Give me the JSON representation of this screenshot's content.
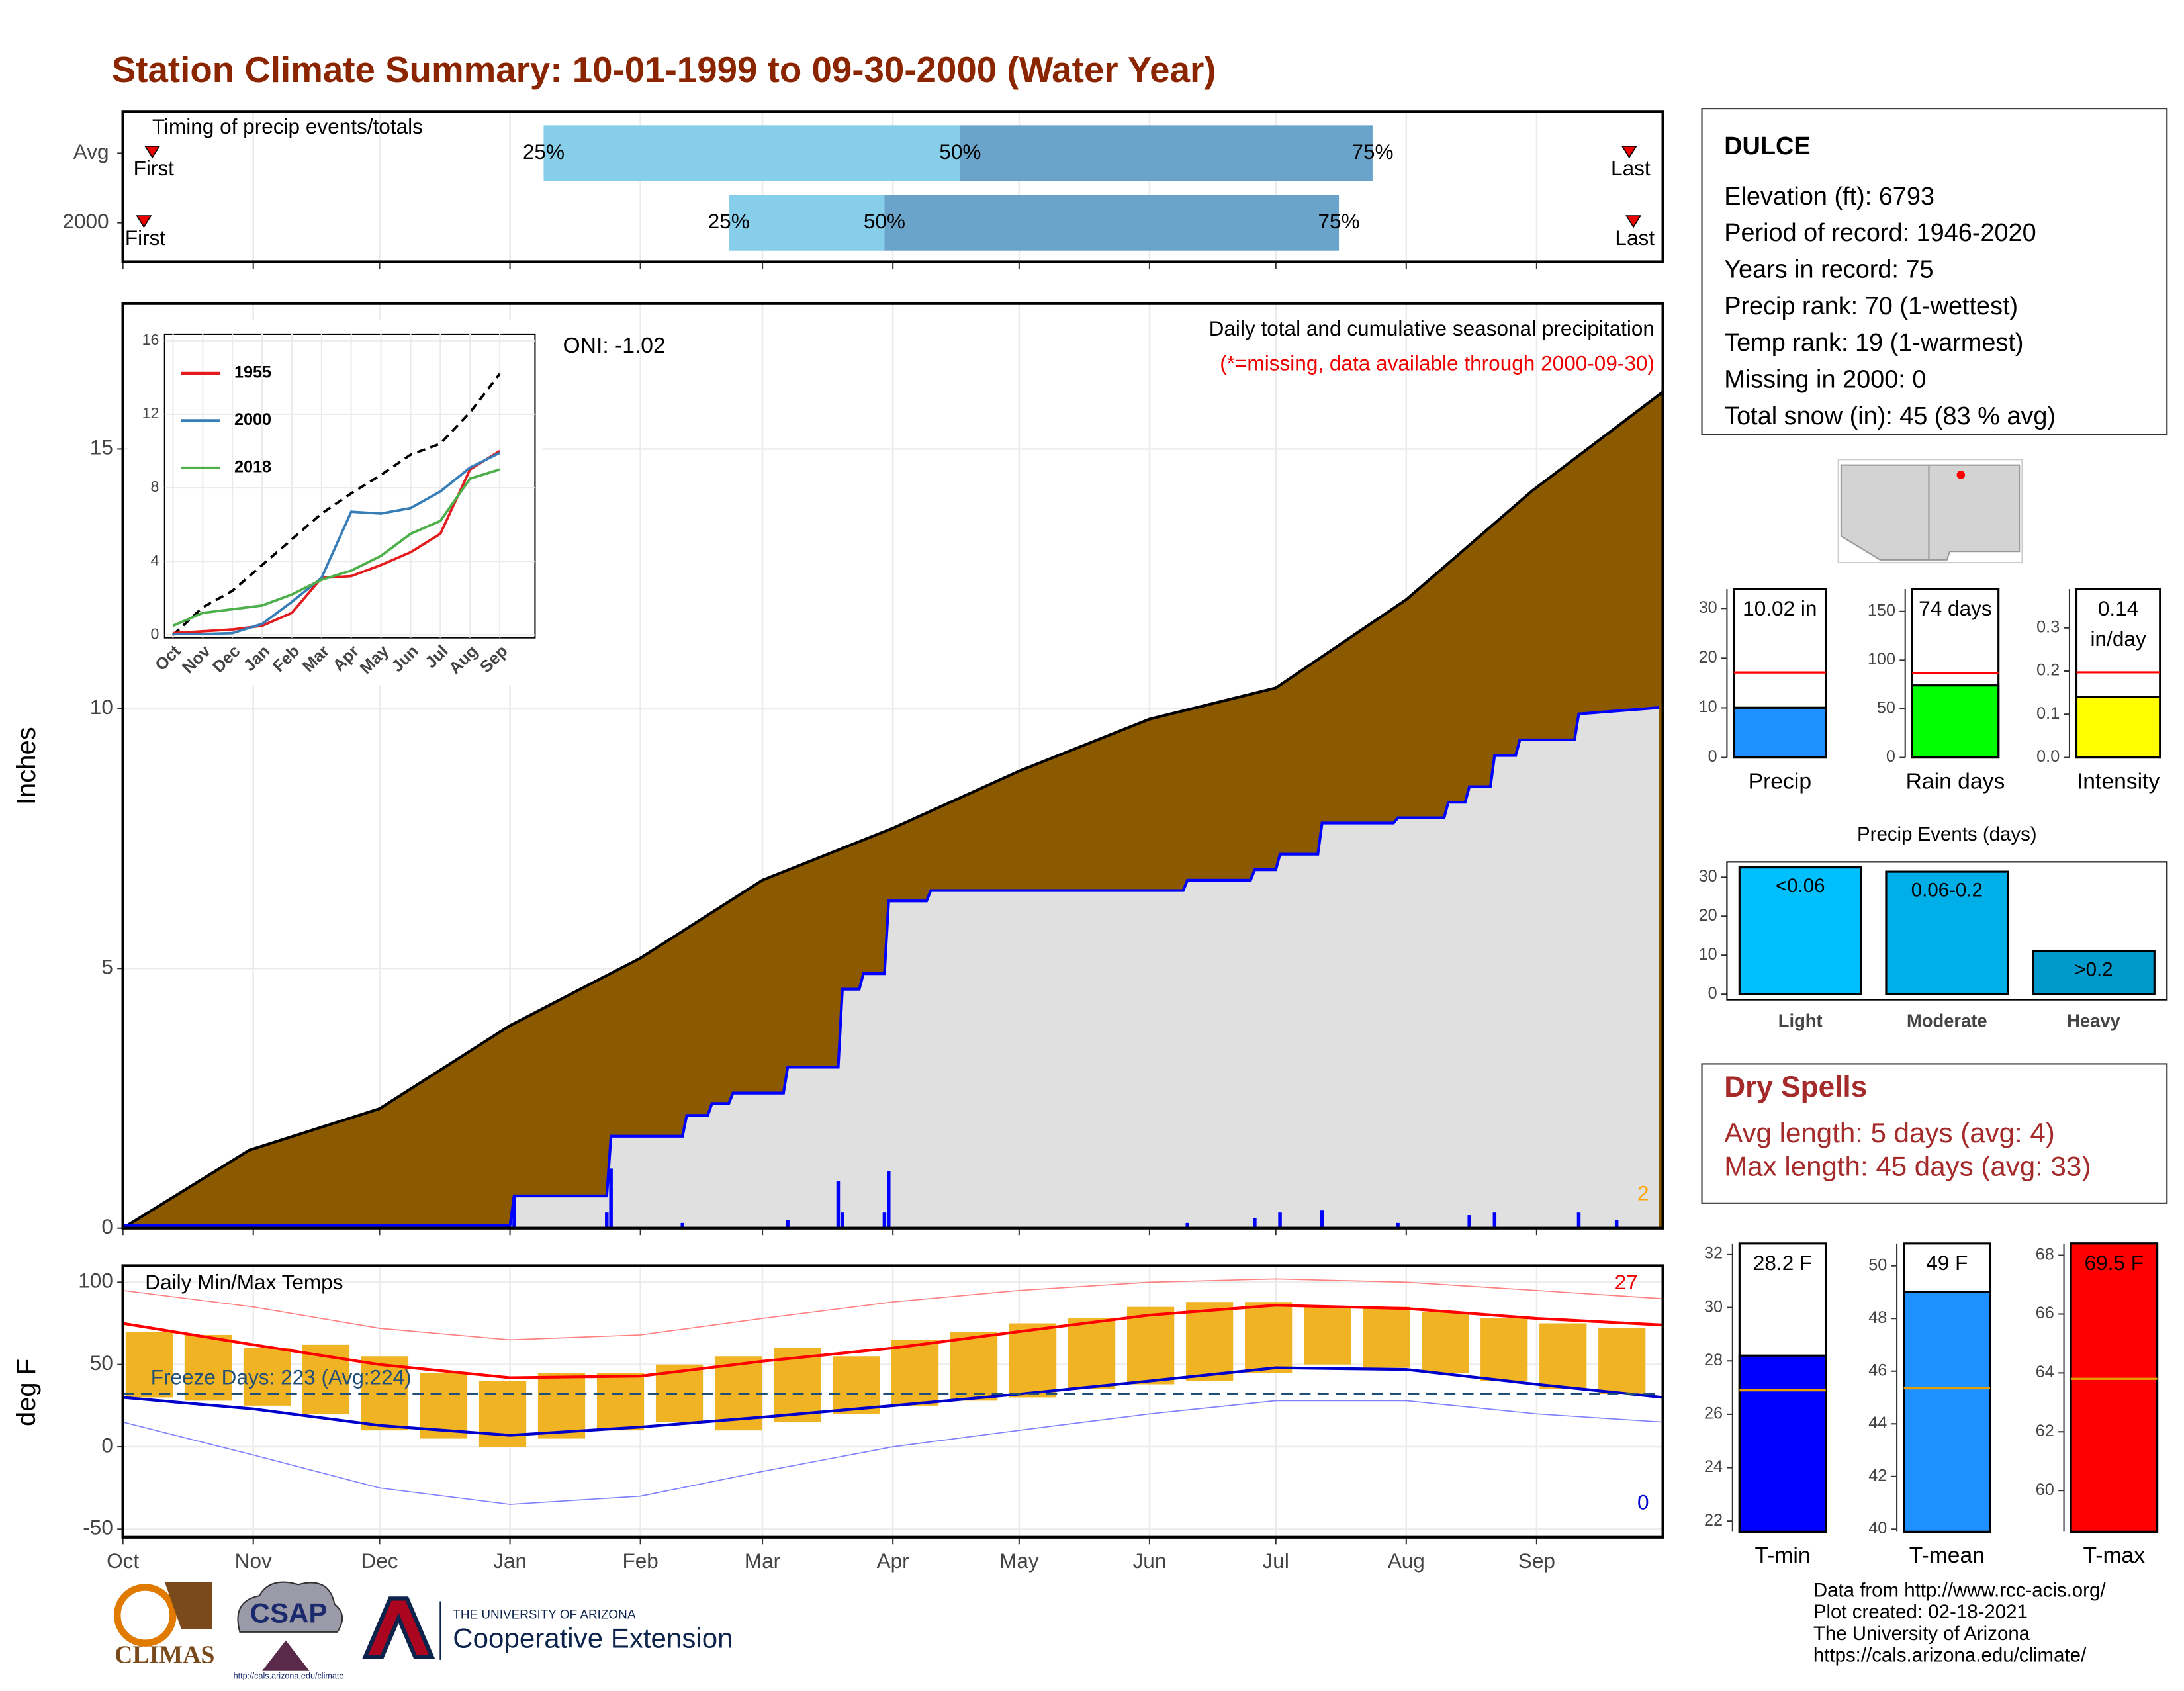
{
  "title": "Station Climate Summary: 10-01-1999 to 09-30-2000 (Water Year)",
  "chart_data": [
    {
      "type": "range",
      "title": "Timing of precip events/totals",
      "categories": [
        "Avg",
        "2000"
      ],
      "first": [
        7,
        5
      ],
      "p25": [
        100,
        144
      ],
      "p50": [
        199,
        181
      ],
      "p75": [
        297,
        289
      ],
      "last": [
        358,
        359
      ],
      "first_label": "First",
      "last_label": "Last",
      "p25_label": "25%",
      "p50_label": "50%",
      "p75_label": "75%",
      "colors": [
        "#87ceeb",
        "#6ba4cb"
      ],
      "xlim": [
        0,
        366
      ]
    },
    {
      "type": "cumulative",
      "title": "Daily total and cumulative seasonal precipitation",
      "subtitle": "(*=missing, data available through 2000-09-30)",
      "annotation": "ONI: -1.02",
      "ylabel": "Inches",
      "ylim": [
        0,
        17.8
      ],
      "yticks": [
        0,
        5,
        10,
        15
      ],
      "xlim": [
        0,
        366
      ],
      "series": [
        {
          "color": "#8b5a00",
          "line_color": "#000000",
          "x": [
            0,
            30,
            61,
            92,
            123,
            152,
            183,
            213,
            244,
            274,
            305,
            335,
            366
          ],
          "values": [
            0,
            1.5,
            2.3,
            3.9,
            5.2,
            6.7,
            7.7,
            8.8,
            9.8,
            10.4,
            12.1,
            14.2,
            16.1
          ]
        },
        {
          "color": "#e0e0e0",
          "line_color": "#0000ff",
          "x": [
            0,
            92,
            93,
            115,
            116,
            133,
            134,
            139,
            140,
            144,
            145,
            157,
            158,
            170,
            171,
            175,
            176,
            181,
            182,
            191,
            192,
            252,
            253,
            268,
            269,
            274,
            275,
            284,
            285,
            302,
            303,
            314,
            315,
            319,
            320,
            325,
            326,
            331,
            332,
            345,
            346,
            365
          ],
          "values": [
            0.05,
            0.05,
            0.62,
            0.62,
            1.77,
            1.77,
            2.17,
            2.17,
            2.4,
            2.4,
            2.6,
            2.6,
            3.1,
            3.1,
            4.6,
            4.6,
            4.9,
            4.9,
            6.3,
            6.3,
            6.5,
            6.5,
            6.7,
            6.7,
            6.9,
            6.9,
            7.2,
            7.2,
            7.8,
            7.8,
            7.9,
            7.9,
            8.2,
            8.2,
            8.5,
            8.5,
            9.1,
            9.1,
            9.4,
            9.4,
            9.9,
            10.02
          ]
        }
      ],
      "daily_color": "#0000ff",
      "daily_x": [
        93,
        115,
        116,
        133,
        158,
        170,
        171,
        181,
        182,
        253,
        269,
        275,
        285,
        303,
        320,
        326,
        346,
        355
      ],
      "daily_values": [
        0.6,
        0.3,
        1.15,
        0.1,
        0.15,
        0.9,
        0.3,
        0.3,
        1.1,
        0.1,
        0.2,
        0.3,
        0.35,
        0.1,
        0.25,
        0.3,
        0.3,
        0.15
      ],
      "count": 2,
      "count_color": "#ffa500"
    },
    {
      "type": "line",
      "categories": [
        "Oct",
        "Nov",
        "Dec",
        "Jan",
        "Feb",
        "Mar",
        "Apr",
        "May",
        "Jun",
        "Jul",
        "Aug",
        "Sep"
      ],
      "ylim": [
        0,
        16.2
      ],
      "yticks": [
        0,
        4,
        8,
        12,
        16
      ],
      "series": [
        {
          "color": "#000000",
          "dash": true,
          "values": [
            0,
            1.5,
            2.4,
            3.8,
            5.2,
            6.6,
            7.7,
            8.7,
            9.8,
            10.4,
            12.1,
            14.2
          ]
        },
        {
          "name": "1955",
          "color": "#e41a1c",
          "values": [
            0.1,
            0.2,
            0.3,
            0.5,
            1.2,
            3.1,
            3.2,
            3.8,
            4.5,
            5.5,
            9.0,
            10.0
          ]
        },
        {
          "name": "2000",
          "color": "#377eb8",
          "values": [
            0.05,
            0.05,
            0.1,
            0.6,
            1.8,
            3.1,
            6.7,
            6.6,
            6.9,
            7.8,
            9.1,
            9.9
          ]
        },
        {
          "name": "2018",
          "color": "#4daf4a",
          "values": [
            0.5,
            1.2,
            1.4,
            1.6,
            2.2,
            3.0,
            3.5,
            4.3,
            5.5,
            6.2,
            8.5,
            9.0
          ]
        }
      ]
    },
    {
      "type": "bar",
      "categories": [
        "Precip"
      ],
      "values": [
        10.02
      ],
      "value_labels": [
        "10.02 in"
      ],
      "average": 17.1,
      "average_color": "#ff0000",
      "color": "#1e90ff",
      "ylim": [
        0,
        33.9
      ],
      "yticks": [
        0,
        10,
        20,
        30
      ]
    },
    {
      "type": "bar",
      "categories": [
        "Rain days"
      ],
      "values": [
        74
      ],
      "value_labels": [
        "74 days"
      ],
      "average": 87,
      "average_color": "#ff0000",
      "color": "#00ff00",
      "ylim": [
        0,
        173
      ],
      "yticks": [
        0,
        50,
        100,
        150
      ]
    },
    {
      "type": "bar",
      "categories": [
        "Intensity"
      ],
      "values": [
        0.14
      ],
      "value_labels": [
        "0.14 in/day"
      ],
      "average": 0.197,
      "average_color": "#ff0000",
      "color": "#ffff00",
      "ylim": [
        0,
        0.39
      ],
      "yticks": [
        {
          "value": 0,
          "label": "0.0"
        },
        0.1,
        0.2,
        0.3
      ]
    },
    {
      "type": "bar",
      "title": "Precip Events (days)",
      "categories": [
        "Light",
        "Moderate",
        "Heavy"
      ],
      "values": [
        32.5,
        31.4,
        11
      ],
      "bin_labels": [
        "<0.06",
        "0.06-0.2",
        ">0.2"
      ],
      "colors": [
        "#00bfff",
        "#00aee8",
        "#0099cc"
      ],
      "ylim": [
        0,
        33.9
      ],
      "yticks": [
        0,
        10,
        20,
        30
      ],
      "frame": true
    },
    {
      "type": "temperature",
      "title": "Daily Min/Max Temps",
      "ylabel": "deg F",
      "ylim": [
        -55,
        110
      ],
      "yticks": [
        -50,
        0,
        50,
        100
      ],
      "xlim": [
        0,
        366
      ],
      "xticks": [
        {
          "value": 0,
          "label": "Oct"
        },
        {
          "value": 31,
          "label": "Nov"
        },
        {
          "value": 61,
          "label": "Dec"
        },
        {
          "value": 92,
          "label": "Jan"
        },
        {
          "value": 123,
          "label": "Feb"
        },
        {
          "value": 152,
          "label": "Mar"
        },
        {
          "value": 183,
          "label": "Apr"
        },
        {
          "value": 213,
          "label": "May"
        },
        {
          "value": 244,
          "label": "Jun"
        },
        {
          "value": 274,
          "label": "Jul"
        },
        {
          "value": 305,
          "label": "Aug"
        },
        {
          "value": 336,
          "label": "Sep"
        }
      ],
      "obs_color": "#f0b323",
      "obs_x": [
        0,
        14,
        28,
        42,
        56,
        70,
        84,
        98,
        112,
        126,
        140,
        154,
        168,
        182,
        196,
        210,
        224,
        238,
        252,
        266,
        280,
        294,
        308,
        322,
        336,
        350
      ],
      "obs_max": [
        70,
        68,
        60,
        62,
        55,
        45,
        40,
        45,
        45,
        50,
        55,
        60,
        55,
        65,
        70,
        75,
        78,
        85,
        88,
        88,
        85,
        85,
        82,
        78,
        75,
        72
      ],
      "obs_min": [
        30,
        28,
        25,
        20,
        10,
        5,
        0,
        5,
        10,
        15,
        10,
        15,
        20,
        25,
        28,
        30,
        35,
        38,
        40,
        45,
        50,
        48,
        45,
        40,
        35,
        32
      ],
      "series_x": [
        0,
        31,
        61,
        92,
        123,
        152,
        183,
        213,
        244,
        274,
        305,
        336,
        366
      ],
      "series": [
        {
          "color": "#ff8080",
          "width": 0.8,
          "values": [
            95,
            85,
            72,
            65,
            68,
            78,
            88,
            95,
            100,
            102,
            100,
            95,
            90
          ]
        },
        {
          "color": "#8080ff",
          "width": 0.8,
          "values": [
            15,
            -5,
            -25,
            -35,
            -30,
            -15,
            0,
            10,
            20,
            28,
            28,
            20,
            15
          ]
        },
        {
          "color": "#ff0000",
          "width": 2,
          "values": [
            75,
            62,
            50,
            42,
            43,
            52,
            60,
            70,
            80,
            86,
            84,
            78,
            74
          ]
        },
        {
          "color": "#0000cc",
          "width": 2,
          "values": [
            30,
            23,
            13,
            7,
            12,
            18,
            25,
            32,
            40,
            48,
            47,
            38,
            30
          ]
        }
      ],
      "freeze": 32,
      "freeze_color": "#1f4e79",
      "freeze_label": "Freeze Days: 223 (Avg:224)",
      "max_count": 27,
      "min_count": 0
    },
    {
      "type": "bar",
      "categories": [
        "T-min"
      ],
      "values": [
        28.2
      ],
      "value_labels": [
        "28.2 F"
      ],
      "average": 26.9,
      "average_color": "#e69f00",
      "color": "#0000ff",
      "ylim": [
        21.6,
        32.4
      ],
      "yticks": [
        22,
        24,
        26,
        28,
        30,
        32
      ]
    },
    {
      "type": "bar",
      "categories": [
        "T-mean"
      ],
      "values": [
        49
      ],
      "value_labels": [
        "49 F"
      ],
      "average": 45.35,
      "average_color": "#e69f00",
      "color": "#1e90ff",
      "ylim": [
        39.9,
        50.85
      ],
      "yticks": [
        40,
        42,
        44,
        46,
        48,
        50
      ]
    },
    {
      "type": "bar",
      "categories": [
        "T-max"
      ],
      "values": [
        69.5
      ],
      "value_labels": [
        "69.5 F"
      ],
      "average": 63.8,
      "average_color": "#e69f00",
      "color": "#ff0000",
      "ylim": [
        58.6,
        68.4
      ],
      "yticks": [
        60,
        62,
        64,
        66,
        68
      ]
    }
  ],
  "info": {
    "station": "DULCE",
    "lines": [
      "Elevation (ft): 6793",
      "Period of record: 1946-2020",
      "Years in record: 75",
      "Precip rank: 70 (1-wettest)",
      "Temp rank: 19 (1-warmest)",
      "Missing in 2000: 0",
      "Total snow (in): 45 (83 % avg)"
    ]
  },
  "dry_spells": {
    "title": "Dry Spells",
    "lines": [
      "Avg length: 5 days (avg: 4)",
      "Max length: 45 days (avg: 33)"
    ]
  },
  "logos": {
    "climas": "CLIMAS",
    "csap": "CSAP",
    "csap_url": "http://cals.arizona.edu/climate",
    "ua": "THE UNIVERSITY OF ARIZONA",
    "extension": "Cooperative Extension"
  },
  "credits": [
    "Data from http://www.rcc-acis.org/",
    "Plot created: 02-18-2021",
    "The University of Arizona",
    "https://cals.arizona.edu/climate/"
  ]
}
